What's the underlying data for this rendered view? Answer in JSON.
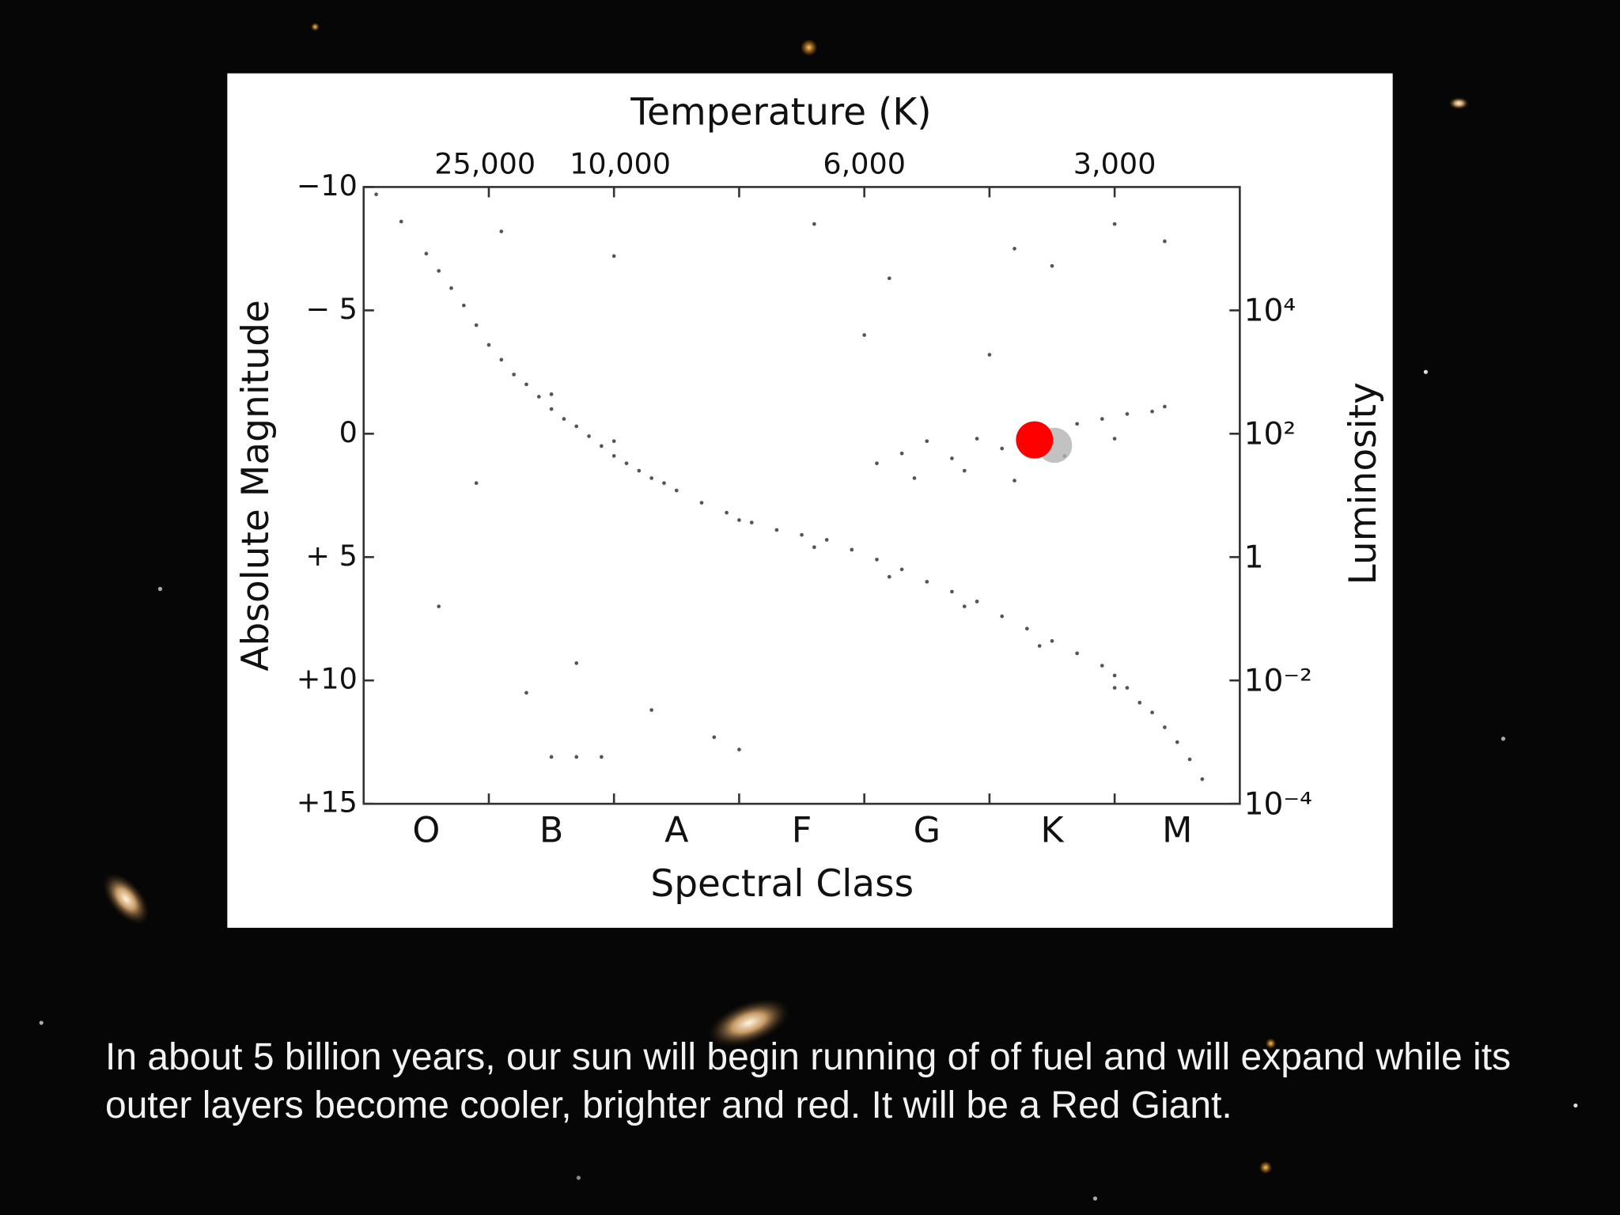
{
  "chart_data": {
    "type": "scatter",
    "title": "Temperature (K)",
    "x_label": "Spectral Class",
    "y_label": "Absolute Magnitude",
    "y2_label": "Luminosity",
    "categories": [
      "O",
      "B",
      "A",
      "F",
      "G",
      "K",
      "M"
    ],
    "xlim": [
      0,
      7
    ],
    "ylim": [
      -10,
      15
    ],
    "y_inverted": true,
    "yticks": [
      {
        "value": -10,
        "label": "−10"
      },
      {
        "value": -5,
        "label": "− 5"
      },
      0,
      {
        "value": 5,
        "label": "+ 5"
      },
      {
        "value": 10,
        "label": "+10"
      },
      {
        "value": 15,
        "label": "+15"
      }
    ],
    "y2lim": [
      1000000,
      0.0001
    ],
    "y2_log": true,
    "y2ticks": [
      {
        "value": 10000,
        "label": "10⁴"
      },
      {
        "value": 100,
        "label": "10²"
      },
      1,
      {
        "value": 0.01,
        "label": "10⁻²"
      },
      {
        "value": 0.0001,
        "label": "10⁻⁴"
      }
    ],
    "temperature_ticks": [
      {
        "value": 25000,
        "label": "25,000"
      },
      {
        "value": 10000,
        "label": "10,000"
      },
      {
        "value": 6000,
        "label": "6,000"
      },
      {
        "value": 3000,
        "label": "3,000"
      }
    ],
    "series": [
      {
        "color": "#555555",
        "x": [
          0.1,
          0.3,
          0.5,
          0.6,
          0.7,
          0.8,
          0.9,
          1.0,
          1.1,
          1.2,
          1.3,
          1.4,
          1.5,
          1.6,
          1.7,
          1.8,
          1.9,
          2.0,
          2.1,
          2.2,
          2.3,
          2.5,
          2.7,
          2.9,
          3.1,
          3.3,
          3.5,
          3.7,
          3.9,
          4.1,
          4.3,
          4.5,
          4.7,
          4.9,
          5.1,
          5.3,
          5.5,
          5.7,
          5.9,
          6.0,
          6.1,
          6.2,
          6.3,
          6.4,
          6.5,
          6.6,
          6.7,
          2.4,
          3.0,
          3.6,
          4.2,
          4.8,
          5.4,
          6.0,
          1.5,
          2.0,
          4.1,
          4.3,
          4.5,
          4.7,
          4.9,
          5.1,
          5.3,
          5.5,
          5.7,
          5.9,
          6.1,
          6.3,
          6.4,
          4.4,
          4.8,
          5.2,
          5.6,
          6.0,
          5.2,
          5.5,
          6.0,
          4.2,
          2.0,
          1.1,
          3.6,
          6.4,
          4.0,
          5.0,
          1.5,
          1.7,
          1.9,
          2.3,
          2.8,
          3.0,
          1.3,
          1.7,
          0.6,
          0.9
        ],
        "values": [
          -9.7,
          -8.6,
          -7.3,
          -6.6,
          -5.9,
          -5.2,
          -4.4,
          -3.6,
          -3.0,
          -2.4,
          -2.0,
          -1.5,
          -1.0,
          -0.6,
          -0.3,
          0.1,
          0.5,
          0.9,
          1.2,
          1.5,
          1.8,
          2.3,
          2.8,
          3.2,
          3.6,
          3.9,
          4.1,
          4.3,
          4.7,
          5.1,
          5.5,
          6.0,
          6.4,
          6.8,
          7.4,
          7.9,
          8.4,
          8.9,
          9.4,
          9.8,
          10.3,
          10.9,
          11.3,
          11.9,
          12.5,
          13.2,
          14.0,
          2.0,
          3.5,
          4.6,
          5.8,
          7.0,
          8.6,
          10.3,
          -1.6,
          0.3,
          1.2,
          0.8,
          0.3,
          1.0,
          0.2,
          0.6,
          -0.2,
          0.4,
          -0.4,
          -0.6,
          -0.8,
          -0.9,
          -1.1,
          1.8,
          1.5,
          1.9,
          0.9,
          0.2,
          -7.5,
          -6.8,
          -8.5,
          -6.3,
          -7.2,
          -8.2,
          -8.5,
          -7.8,
          -4.0,
          -3.2,
          13.1,
          13.1,
          13.1,
          11.2,
          12.3,
          12.8,
          10.5,
          9.3,
          7.0,
          2.0
        ]
      },
      {
        "color": "#b3b3b3",
        "x": [
          5.52
        ],
        "values": [
          0.47
        ]
      },
      {
        "color": "#ff0000",
        "x": [
          5.36
        ],
        "values": [
          0.25
        ]
      }
    ]
  },
  "caption": "In about 5 billion years, our sun will begin running of of fuel and will expand while its outer layers become cooler, brighter and red. It will be a Red Giant."
}
